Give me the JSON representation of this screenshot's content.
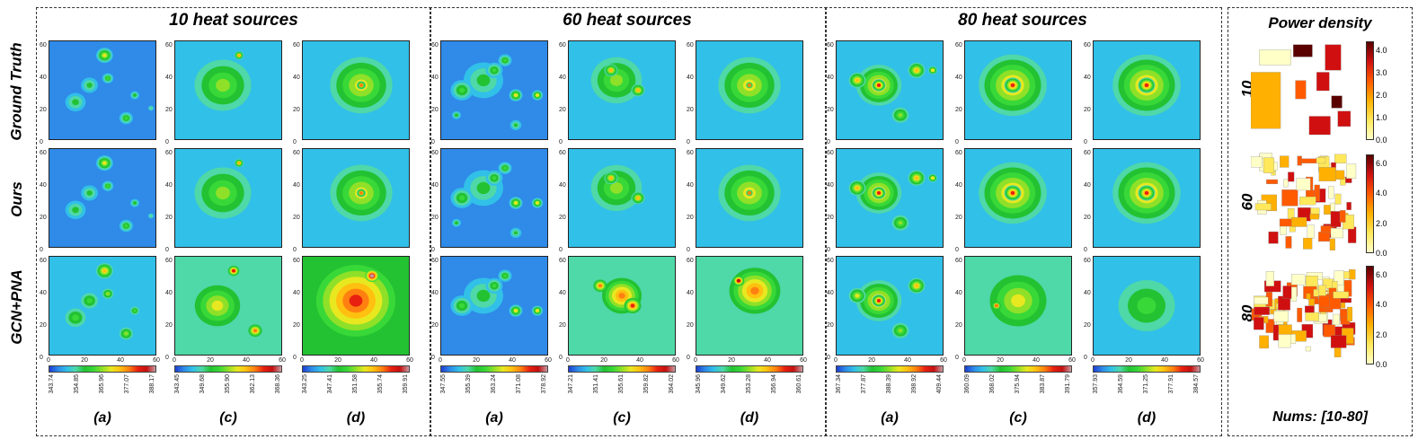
{
  "groups": [
    {
      "title": "10 heat sources",
      "labels": [
        "(a)",
        "(c)",
        "(d)"
      ],
      "colorbars": [
        [
          "343.74",
          "354.85",
          "365.96",
          "377.07",
          "388.17"
        ],
        [
          "343.45",
          "349.68",
          "355.90",
          "362.13",
          "368.36"
        ],
        [
          "343.25",
          "347.41",
          "351.58",
          "355.74",
          "359.91"
        ]
      ],
      "rows": [
        [
          {
            "base": 1,
            "peaks": [
              [
                0.52,
                0.15,
                0.15,
                6
              ],
              [
                0.55,
                0.38,
                0.1,
                4
              ],
              [
                0.38,
                0.45,
                0.15,
                3
              ],
              [
                0.72,
                0.78,
                0.12,
                4
              ],
              [
                0.25,
                0.62,
                0.18,
                3
              ],
              [
                0.8,
                0.55,
                0.08,
                3
              ],
              [
                0.95,
                0.68,
                0.05,
                2
              ]
            ]
          },
          {
            "base": 2,
            "peaks": [
              [
                0.45,
                0.45,
                0.5,
                4
              ],
              [
                0.6,
                0.15,
                0.08,
                6
              ]
            ]
          },
          {
            "base": 2,
            "peaks": [
              [
                0.55,
                0.45,
                0.55,
                5
              ],
              [
                0.55,
                0.45,
                0.08,
                7
              ]
            ]
          }
        ],
        [
          {
            "base": 1,
            "peaks": [
              [
                0.52,
                0.15,
                0.15,
                6
              ],
              [
                0.55,
                0.38,
                0.1,
                4
              ],
              [
                0.38,
                0.45,
                0.15,
                3
              ],
              [
                0.72,
                0.78,
                0.12,
                4
              ],
              [
                0.25,
                0.62,
                0.18,
                3
              ],
              [
                0.8,
                0.55,
                0.08,
                3
              ],
              [
                0.95,
                0.68,
                0.05,
                2
              ]
            ]
          },
          {
            "base": 2,
            "peaks": [
              [
                0.45,
                0.45,
                0.5,
                4
              ],
              [
                0.6,
                0.15,
                0.08,
                6
              ]
            ]
          },
          {
            "base": 2,
            "peaks": [
              [
                0.55,
                0.45,
                0.55,
                5
              ],
              [
                0.55,
                0.45,
                0.08,
                7
              ]
            ]
          }
        ],
        [
          {
            "base": 2,
            "peaks": [
              [
                0.52,
                0.15,
                0.15,
                6
              ],
              [
                0.55,
                0.38,
                0.1,
                4
              ],
              [
                0.38,
                0.45,
                0.15,
                3
              ],
              [
                0.72,
                0.78,
                0.12,
                4
              ],
              [
                0.25,
                0.62,
                0.18,
                3
              ],
              [
                0.8,
                0.55,
                0.08,
                3
              ]
            ]
          },
          {
            "base": 3,
            "peaks": [
              [
                0.55,
                0.15,
                0.1,
                7
              ],
              [
                0.75,
                0.75,
                0.12,
                6
              ],
              [
                0.4,
                0.5,
                0.4,
                4
              ]
            ]
          },
          {
            "base": 4,
            "peaks": [
              [
                0.5,
                0.45,
                0.7,
                6
              ],
              [
                0.65,
                0.2,
                0.12,
                8
              ]
            ]
          }
        ]
      ]
    },
    {
      "title": "60 heat sources",
      "labels": [
        "(a)",
        "(c)",
        "(d)"
      ],
      "colorbars": [
        [
          "347.55",
          "355.39",
          "363.24",
          "371.08",
          "378.92"
        ],
        [
          "347.21",
          "351.41",
          "355.61",
          "359.82",
          "364.02"
        ],
        [
          "345.96",
          "349.62",
          "353.28",
          "356.94",
          "360.61"
        ]
      ],
      "rows": [
        [
          {
            "base": 1,
            "peaks": [
              [
                0.4,
                0.4,
                0.35,
                3
              ],
              [
                0.7,
                0.55,
                0.12,
                6
              ],
              [
                0.9,
                0.55,
                0.1,
                6
              ],
              [
                0.2,
                0.5,
                0.2,
                4
              ],
              [
                0.5,
                0.3,
                0.15,
                4
              ],
              [
                0.7,
                0.85,
                0.1,
                3
              ],
              [
                0.15,
                0.75,
                0.08,
                3
              ],
              [
                0.6,
                0.2,
                0.12,
                4
              ]
            ]
          },
          {
            "base": 2,
            "peaks": [
              [
                0.45,
                0.4,
                0.45,
                4
              ],
              [
                0.4,
                0.3,
                0.12,
                6
              ],
              [
                0.65,
                0.5,
                0.12,
                6
              ]
            ]
          },
          {
            "base": 2,
            "peaks": [
              [
                0.5,
                0.45,
                0.55,
                5
              ],
              [
                0.5,
                0.45,
                0.06,
                7
              ]
            ]
          }
        ],
        [
          {
            "base": 1,
            "peaks": [
              [
                0.4,
                0.4,
                0.35,
                3
              ],
              [
                0.7,
                0.55,
                0.12,
                6
              ],
              [
                0.9,
                0.55,
                0.1,
                6
              ],
              [
                0.2,
                0.5,
                0.2,
                4
              ],
              [
                0.5,
                0.3,
                0.15,
                4
              ],
              [
                0.7,
                0.85,
                0.1,
                3
              ],
              [
                0.15,
                0.75,
                0.08,
                3
              ],
              [
                0.6,
                0.2,
                0.12,
                4
              ]
            ]
          },
          {
            "base": 2,
            "peaks": [
              [
                0.45,
                0.4,
                0.45,
                4
              ],
              [
                0.4,
                0.3,
                0.12,
                6
              ],
              [
                0.65,
                0.5,
                0.12,
                6
              ]
            ]
          },
          {
            "base": 2,
            "peaks": [
              [
                0.5,
                0.45,
                0.55,
                5
              ],
              [
                0.5,
                0.45,
                0.06,
                7
              ]
            ]
          }
        ],
        [
          {
            "base": 1,
            "peaks": [
              [
                0.4,
                0.4,
                0.35,
                3
              ],
              [
                0.7,
                0.55,
                0.12,
                6
              ],
              [
                0.9,
                0.55,
                0.1,
                6
              ],
              [
                0.2,
                0.5,
                0.2,
                4
              ],
              [
                0.5,
                0.3,
                0.15,
                4
              ],
              [
                0.6,
                0.2,
                0.12,
                4
              ]
            ]
          },
          {
            "base": 3,
            "peaks": [
              [
                0.5,
                0.4,
                0.35,
                6
              ],
              [
                0.6,
                0.5,
                0.15,
                7
              ],
              [
                0.3,
                0.3,
                0.12,
                6
              ]
            ]
          },
          {
            "base": 3,
            "peaks": [
              [
                0.55,
                0.35,
                0.45,
                6
              ],
              [
                0.4,
                0.25,
                0.1,
                8
              ]
            ]
          }
        ]
      ]
    },
    {
      "title": "80 heat sources",
      "labels": [
        "(a)",
        "(c)",
        "(d)"
      ],
      "colorbars": [
        [
          "367.34",
          "377.87",
          "388.39",
          "398.92",
          "409.44"
        ],
        [
          "360.09",
          "368.02",
          "375.94",
          "383.87",
          "391.79"
        ],
        [
          "357.93",
          "364.59",
          "371.25",
          "377.91",
          "384.57"
        ]
      ],
      "rows": [
        [
          {
            "base": 2,
            "peaks": [
              [
                0.4,
                0.45,
                0.4,
                6
              ],
              [
                0.4,
                0.45,
                0.12,
                8
              ],
              [
                0.75,
                0.3,
                0.15,
                6
              ],
              [
                0.2,
                0.4,
                0.15,
                6
              ],
              [
                0.6,
                0.75,
                0.15,
                4
              ],
              [
                0.9,
                0.3,
                0.08,
                5
              ]
            ]
          },
          {
            "base": 2,
            "peaks": [
              [
                0.45,
                0.45,
                0.6,
                6
              ],
              [
                0.45,
                0.45,
                0.15,
                8
              ]
            ]
          },
          {
            "base": 2,
            "peaks": [
              [
                0.5,
                0.45,
                0.6,
                6
              ],
              [
                0.5,
                0.45,
                0.15,
                8
              ]
            ]
          }
        ],
        [
          {
            "base": 2,
            "peaks": [
              [
                0.4,
                0.45,
                0.4,
                6
              ],
              [
                0.4,
                0.45,
                0.12,
                8
              ],
              [
                0.75,
                0.3,
                0.15,
                6
              ],
              [
                0.2,
                0.4,
                0.15,
                6
              ],
              [
                0.6,
                0.75,
                0.15,
                4
              ],
              [
                0.9,
                0.3,
                0.08,
                5
              ]
            ]
          },
          {
            "base": 2,
            "peaks": [
              [
                0.45,
                0.45,
                0.6,
                6
              ],
              [
                0.45,
                0.45,
                0.15,
                8
              ]
            ]
          },
          {
            "base": 2,
            "peaks": [
              [
                0.5,
                0.45,
                0.6,
                6
              ],
              [
                0.5,
                0.45,
                0.15,
                8
              ]
            ]
          }
        ],
        [
          {
            "base": 2,
            "peaks": [
              [
                0.4,
                0.45,
                0.4,
                6
              ],
              [
                0.4,
                0.45,
                0.12,
                8
              ],
              [
                0.75,
                0.3,
                0.15,
                6
              ],
              [
                0.2,
                0.4,
                0.15,
                5
              ],
              [
                0.6,
                0.75,
                0.15,
                4
              ]
            ]
          },
          {
            "base": 3,
            "peaks": [
              [
                0.5,
                0.45,
                0.5,
                4
              ],
              [
                0.3,
                0.5,
                0.08,
                6
              ]
            ]
          },
          {
            "base": 2,
            "peaks": [
              [
                0.5,
                0.5,
                0.5,
                3
              ]
            ]
          }
        ]
      ]
    }
  ],
  "row_labels": [
    "Ground Truth",
    "Ours",
    "GCN+PNA"
  ],
  "axis": {
    "yticks": [
      "60",
      "40",
      "20",
      "0"
    ],
    "xticks": [
      "0",
      "20",
      "40",
      "60"
    ]
  },
  "colormap": [
    "#1c3fd1",
    "#2f8ae8",
    "#31c0e8",
    "#4fd8a8",
    "#22c232",
    "#38d838",
    "#8fe028",
    "#e8e820",
    "#ffc010",
    "#ff8010",
    "#e82010",
    "#c41010",
    "#c89aa0"
  ],
  "power_density": {
    "title": "Power density",
    "nums": "Nums: [10-80]",
    "maps": [
      {
        "label": "10",
        "ticks": [
          "4.0",
          "3.0",
          "2.0",
          "1.0",
          "0.0"
        ]
      },
      {
        "label": "60",
        "ticks": [
          "6.0",
          "4.0",
          "2.0",
          "0.0"
        ]
      },
      {
        "label": "80",
        "ticks": [
          "6.0",
          "4.0",
          "2.0",
          "0.0"
        ]
      }
    ]
  }
}
